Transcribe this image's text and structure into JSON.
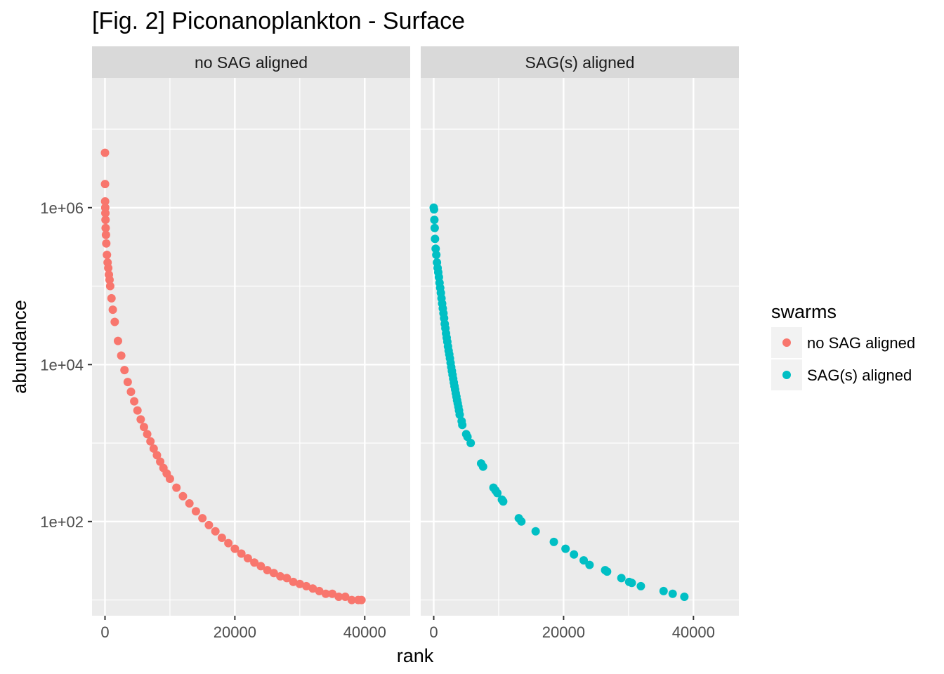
{
  "chart_data": {
    "type": "scatter",
    "title": "[Fig. 2] Piconanoplankton - Surface",
    "xlabel": "rank",
    "ylabel": "abundance",
    "y_scale": "log10",
    "grid": true,
    "facets": [
      "no SAG aligned",
      "SAG(s) aligned"
    ],
    "x_ticks": [
      0,
      20000,
      40000
    ],
    "x_tick_labels": [
      "0",
      "20000",
      "40000"
    ],
    "x_range": [
      -2000,
      47000
    ],
    "y_ticks": [
      100,
      10000,
      1000000
    ],
    "y_tick_labels": [
      "1e+02",
      "1e+04",
      "1e+06"
    ],
    "y_range": [
      6.3,
      45000000
    ],
    "legend": {
      "title": "swarms",
      "position": "right",
      "entries": [
        {
          "label": "no SAG aligned",
          "color": "#F8766D"
        },
        {
          "label": "SAG(s) aligned",
          "color": "#00BFC4"
        }
      ]
    },
    "series": [
      {
        "name": "no SAG aligned",
        "color": "#F8766D",
        "x": [
          0,
          10,
          20,
          40,
          60,
          80,
          100,
          150,
          200,
          300,
          400,
          500,
          600,
          700,
          800,
          1000,
          1200,
          1500,
          2000,
          2500,
          3000,
          3500,
          4000,
          4500,
          5000,
          5500,
          6000,
          6500,
          7000,
          7500,
          8000,
          8500,
          9000,
          9500,
          10000,
          11000,
          12000,
          13000,
          14000,
          15000,
          16000,
          17000,
          18000,
          19000,
          20000,
          21000,
          22000,
          23000,
          24000,
          25000,
          26000,
          27000,
          28000,
          29000,
          30000,
          31000,
          32000,
          33000,
          34000,
          35000,
          36000,
          37000,
          38000,
          39000,
          39500
        ],
        "y": [
          5000000,
          2000000,
          1200000,
          1000000,
          850000,
          700000,
          550000,
          450000,
          350000,
          250000,
          200000,
          170000,
          140000,
          120000,
          100000,
          70000,
          50000,
          35000,
          20000,
          13000,
          8500,
          6000,
          4500,
          3400,
          2600,
          2000,
          1600,
          1300,
          1050,
          850,
          700,
          580,
          480,
          410,
          350,
          270,
          210,
          170,
          135,
          110,
          90,
          75,
          62,
          53,
          45,
          39,
          34,
          30,
          27,
          24,
          22,
          20,
          19,
          17,
          16,
          15,
          14,
          13,
          12,
          12,
          11,
          11,
          10,
          10,
          10
        ]
      },
      {
        "name": "SAG(s) aligned",
        "color": "#00BFC4",
        "x": [
          0,
          50,
          100,
          150,
          200,
          300,
          400,
          500,
          600,
          700,
          800,
          900,
          1000,
          1100,
          1200,
          1300,
          1400,
          1500,
          1600,
          1700,
          1800,
          1900,
          2000,
          2100,
          2200,
          2300,
          2400,
          2500,
          2600,
          2700,
          2800,
          2900,
          3000,
          3100,
          3200,
          3300,
          3400,
          3500,
          3600,
          3700,
          3800,
          3900,
          4000,
          4300,
          4400,
          5000,
          5200,
          5700,
          7300,
          7600,
          9200,
          9500,
          9800,
          10500,
          10700,
          13100,
          13500,
          15700,
          18500,
          20300,
          21600,
          23100,
          24000,
          26400,
          26700,
          28900,
          30100,
          30500,
          31900,
          35400,
          36800,
          38600
        ],
        "y": [
          1000000,
          950000,
          700000,
          550000,
          400000,
          300000,
          250000,
          200000,
          170000,
          150000,
          130000,
          110000,
          95000,
          82000,
          70000,
          60000,
          52000,
          45000,
          39000,
          33000,
          29000,
          25000,
          22000,
          19500,
          17000,
          15000,
          13500,
          12000,
          10500,
          9300,
          8300,
          7400,
          6600,
          5900,
          5300,
          4800,
          4300,
          3900,
          3500,
          3200,
          2900,
          2600,
          2300,
          1900,
          1700,
          1300,
          1200,
          1000,
          550,
          500,
          270,
          250,
          230,
          190,
          180,
          110,
          100,
          75,
          55,
          45,
          38,
          32,
          28,
          24,
          23,
          19,
          17,
          16.5,
          15,
          13,
          12,
          11
        ]
      }
    ]
  }
}
